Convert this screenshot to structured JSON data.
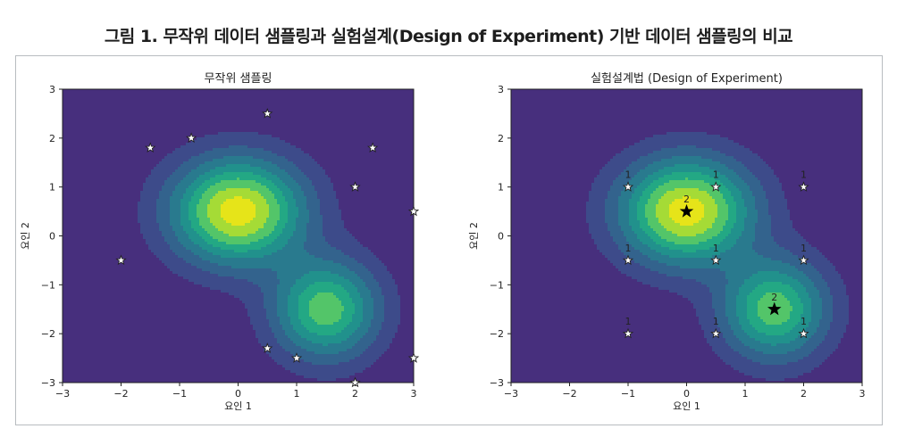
{
  "figure_title": "그림 1. 무작위 데이터 샘플링과 실험설계(Design of Experiment) 기반 데이터 샘플링의 비교",
  "colors": {
    "levels": [
      "#472f7d",
      "#3d4b8a",
      "#33638d",
      "#297a8e",
      "#21918c",
      "#23a884",
      "#53c569",
      "#a5db36",
      "#e6e419"
    ],
    "star_fill_light": "#ffffff",
    "star_fill_dark": "#000000"
  },
  "chart_data": [
    {
      "type": "scatter",
      "title": "무작위 샘플링",
      "xlabel": "요인 1",
      "ylabel": "요인 2",
      "xlim": [
        -3,
        3
      ],
      "ylim": [
        -3,
        3
      ],
      "xticks": [
        "−3",
        "−2",
        "−1",
        "0",
        "1",
        "2",
        "3"
      ],
      "yticks": [
        "−3",
        "−2",
        "−1",
        "0",
        "1",
        "2",
        "3"
      ],
      "background": "filled contour (two peaks near (0, 0.5) and (1.5, −1.5))",
      "points": [
        {
          "x": -1.5,
          "y": 1.8
        },
        {
          "x": -0.8,
          "y": 2.0
        },
        {
          "x": 0.5,
          "y": 2.5
        },
        {
          "x": 2.3,
          "y": 1.8
        },
        {
          "x": 2.0,
          "y": 1.0
        },
        {
          "x": 3.0,
          "y": 0.5
        },
        {
          "x": -2.0,
          "y": -0.5
        },
        {
          "x": 0.5,
          "y": -2.3
        },
        {
          "x": 1.0,
          "y": -2.5
        },
        {
          "x": 3.0,
          "y": -2.5
        },
        {
          "x": 2.0,
          "y": -3.0
        }
      ]
    },
    {
      "type": "scatter",
      "title": "실험설계법 (Design of Experiment)",
      "xlabel": "요인 1",
      "ylabel": "요인 2",
      "xlim": [
        -3,
        3
      ],
      "ylim": [
        -3,
        3
      ],
      "xticks": [
        "−3",
        "−2",
        "−1",
        "0",
        "1",
        "2",
        "3"
      ],
      "yticks": [
        "−3",
        "−2",
        "−1",
        "0",
        "1",
        "2",
        "3"
      ],
      "background": "filled contour (two peaks near (0, 0.5) and (1.5, −1.5))",
      "points": [
        {
          "x": -1.0,
          "y": 1.0,
          "label": "1",
          "marker": "white"
        },
        {
          "x": 0.5,
          "y": 1.0,
          "label": "1",
          "marker": "white"
        },
        {
          "x": 2.0,
          "y": 1.0,
          "label": "1",
          "marker": "white"
        },
        {
          "x": 0.0,
          "y": 0.5,
          "label": "2",
          "marker": "black"
        },
        {
          "x": -1.0,
          "y": -0.5,
          "label": "1",
          "marker": "white"
        },
        {
          "x": 0.5,
          "y": -0.5,
          "label": "1",
          "marker": "white"
        },
        {
          "x": 2.0,
          "y": -0.5,
          "label": "1",
          "marker": "white"
        },
        {
          "x": 1.5,
          "y": -1.5,
          "label": "2",
          "marker": "black"
        },
        {
          "x": -1.0,
          "y": -2.0,
          "label": "1",
          "marker": "white"
        },
        {
          "x": 0.5,
          "y": -2.0,
          "label": "1",
          "marker": "white"
        },
        {
          "x": 2.0,
          "y": -2.0,
          "label": "1",
          "marker": "white"
        }
      ]
    }
  ]
}
